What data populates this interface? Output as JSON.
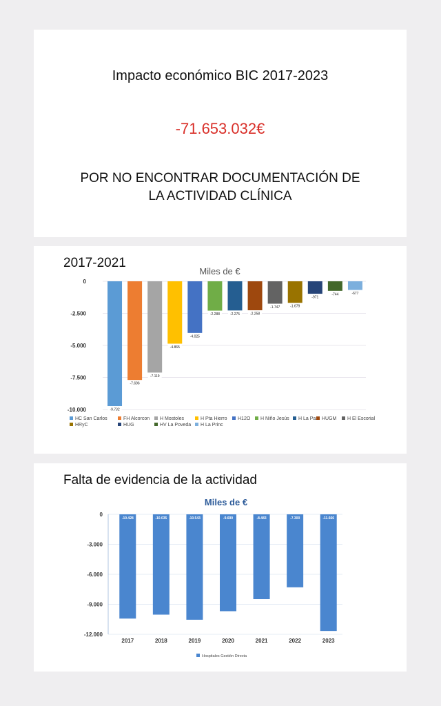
{
  "impact_card": {
    "title": "Impacto económico BIC 2017-2023",
    "amount": "-71.653.032€",
    "message_line1": "POR NO ENCONTRAR DOCUMENTACIÓN DE",
    "message_line2": "LA ACTIVIDAD CLÍNICA"
  },
  "period_card": {
    "title": "2017-2021"
  },
  "evidence_card": {
    "title": "Falta de evidencia de la actividad"
  },
  "chart_data": [
    {
      "type": "bar",
      "title": "Miles de €",
      "ylim": [
        -10000,
        0
      ],
      "yticks": [
        "0",
        "-2.500",
        "-5.000",
        "-7.500",
        "-10.000"
      ],
      "ytick_values": [
        0,
        -2500,
        -5000,
        -7500,
        -10000
      ],
      "grid": true,
      "legend_position": "bottom",
      "series": [
        {
          "name": "HC San Carlos",
          "value": -9732,
          "label": "-9.732",
          "color": "#5b9bd5"
        },
        {
          "name": "FH Alcorcon",
          "value": -7696,
          "label": "-7.696",
          "color": "#ed7d31"
        },
        {
          "name": "H Mostoles",
          "value": -7119,
          "label": "-7.119",
          "color": "#a5a5a5"
        },
        {
          "name": "H Pta Hierro",
          "value": -4865,
          "label": "-4.865",
          "color": "#ffc000"
        },
        {
          "name": "H12O",
          "value": -4025,
          "label": "-4.025",
          "color": "#4472c4"
        },
        {
          "name": "H Niño Jesús",
          "value": -2288,
          "label": "-2.288",
          "color": "#70ad47"
        },
        {
          "name": "H La Paz",
          "value": -2275,
          "label": "-2.275",
          "color": "#255e91"
        },
        {
          "name": "HUGM",
          "value": -2258,
          "label": "-2.258",
          "color": "#9e480e"
        },
        {
          "name": "H El Escorial",
          "value": -1747,
          "label": "-1.747",
          "color": "#636363"
        },
        {
          "name": "HRyC",
          "value": -1679,
          "label": "-1.679",
          "color": "#997300"
        },
        {
          "name": "HUG",
          "value": -971,
          "label": "-971",
          "color": "#264478"
        },
        {
          "name": "HV La Poveda",
          "value": -744,
          "label": "-744",
          "color": "#43682b"
        },
        {
          "name": "H La Princ",
          "value": -677,
          "label": "-677",
          "color": "#7cafdd"
        }
      ]
    },
    {
      "type": "bar",
      "title": "Miles de €",
      "ylim": [
        -12000,
        0
      ],
      "yticks": [
        "0",
        "-3.000",
        "-6.000",
        "-9.000",
        "-12.000"
      ],
      "ytick_values": [
        0,
        -3000,
        -6000,
        -9000,
        -12000
      ],
      "grid": true,
      "legend_position": "bottom",
      "categories": [
        "2017",
        "2018",
        "2019",
        "2020",
        "2021",
        "2022",
        "2023"
      ],
      "series": [
        {
          "name": "Hospitales Gestión Directa",
          "color": "#4a86cf",
          "values": [
            -10428,
            -10035,
            -10543,
            -9690,
            -8483,
            -7300,
            -11666
          ],
          "labels": [
            "-10.428",
            "-10.035",
            "-10.543",
            "-9.690",
            "-8.483",
            "-7.300",
            "-11.666"
          ]
        }
      ]
    }
  ]
}
